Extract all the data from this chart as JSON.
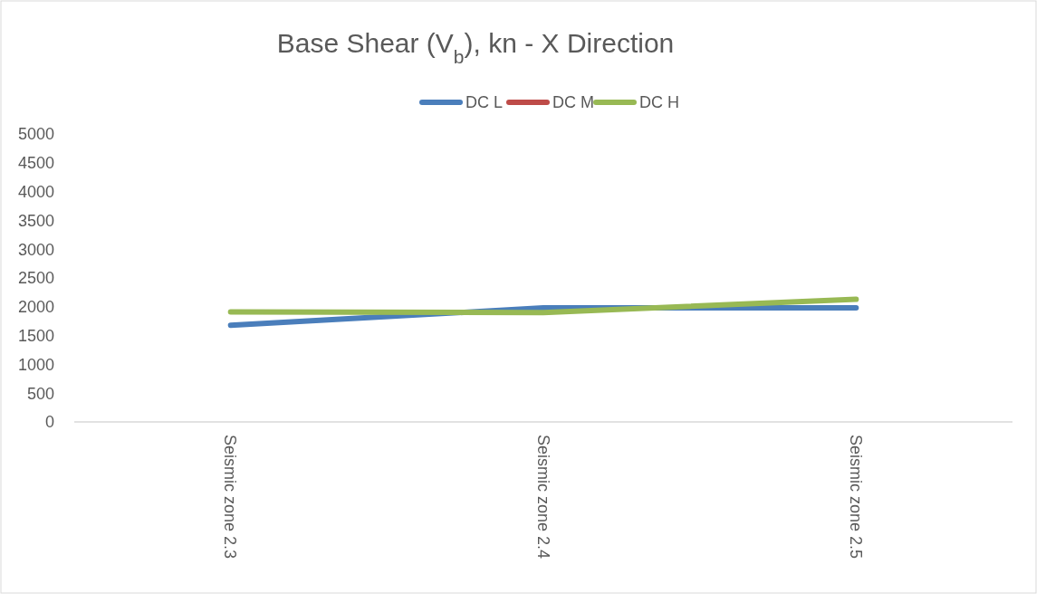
{
  "chart_data": {
    "type": "line",
    "title": "Base Shear (V$_{b}$), kn - X Direction",
    "categories": [
      "Seismic zone 2.3",
      "Seismic zone 2.4",
      "Seismic zone 2.5"
    ],
    "series": [
      {
        "name": "DC L",
        "color": "#4a7ebb",
        "values": [
          1680,
          1980,
          1980
        ]
      },
      {
        "name": "DC M",
        "color": "#be4b48",
        "values": [
          null,
          null,
          null
        ]
      },
      {
        "name": "DC H",
        "color": "#98b954",
        "values": [
          1910,
          1900,
          2130
        ]
      }
    ],
    "ylim": [
      0,
      5000
    ],
    "yticks": [
      0,
      500,
      1000,
      1500,
      2000,
      2500,
      3000,
      3500,
      4000,
      4500,
      5000
    ],
    "grid": false,
    "legend": "top",
    "marker": "none",
    "line_style": "solid"
  }
}
